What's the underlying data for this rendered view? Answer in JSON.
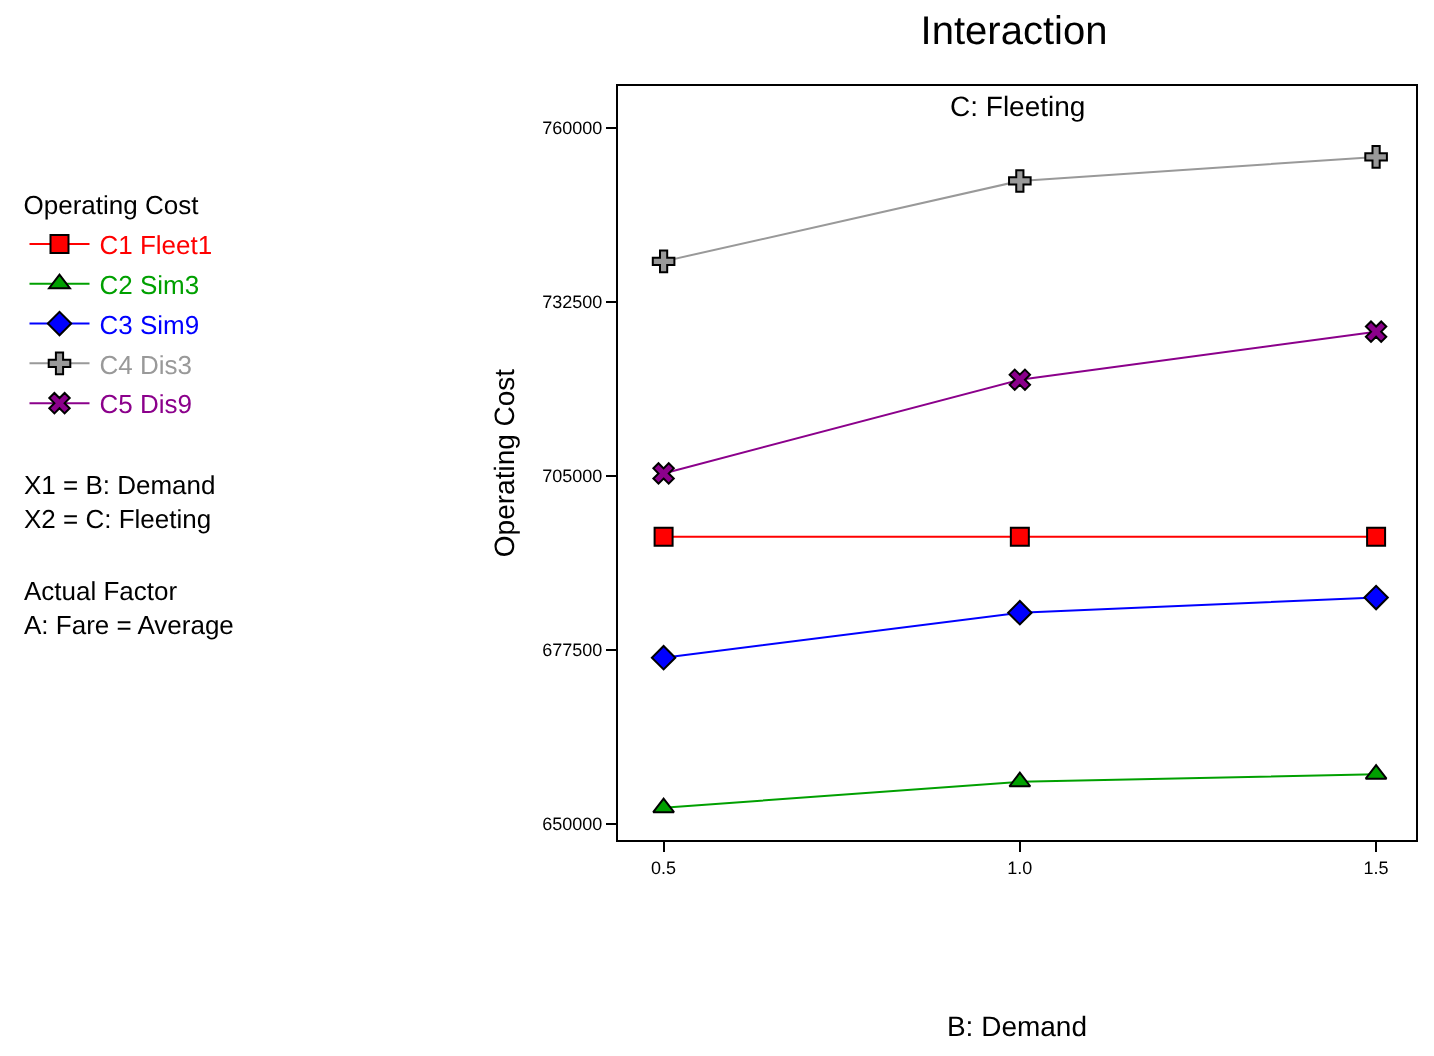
{
  "chart_data": {
    "type": "line",
    "title": "Interaction",
    "subtitle": "C: Fleeting",
    "xlabel": "B: Demand",
    "ylabel": "Operating Cost",
    "legend_title": "Operating Cost",
    "x": [
      0.5,
      1.0,
      1.5
    ],
    "series": [
      {
        "name": "C1 Fleet1",
        "color": "#ff0000",
        "marker": "square",
        "values": [
          695400,
          695400,
          695400
        ]
      },
      {
        "name": "C2 Sim3",
        "color": "#00a000",
        "marker": "triangle",
        "values": [
          652600,
          656700,
          657900
        ]
      },
      {
        "name": "C3 Sim9",
        "color": "#0000ff",
        "marker": "diamond",
        "values": [
          676300,
          683400,
          685800
        ]
      },
      {
        "name": "C4 Dis3",
        "color": "#999999",
        "marker": "cross",
        "values": [
          738900,
          751600,
          755400
        ]
      },
      {
        "name": "C5 Dis9",
        "color": "#8b008b",
        "marker": "x",
        "values": [
          705400,
          720200,
          727800
        ]
      }
    ],
    "annotations": [
      "X1 = B: Demand",
      "X2 = C: Fleeting",
      "Actual Factor",
      "A: Fare = Average"
    ],
    "xlim": [
      0.436,
      1.556
    ],
    "ylim": [
      647500,
      766600
    ],
    "xticks": [
      {
        "value": 0.5,
        "label": "0.5"
      },
      {
        "value": 1.0,
        "label": "1.0"
      },
      {
        "value": 1.5,
        "label": "1.5"
      }
    ],
    "yticks": [
      650000,
      677500,
      705000,
      732500,
      760000
    ],
    "legend": "left"
  }
}
